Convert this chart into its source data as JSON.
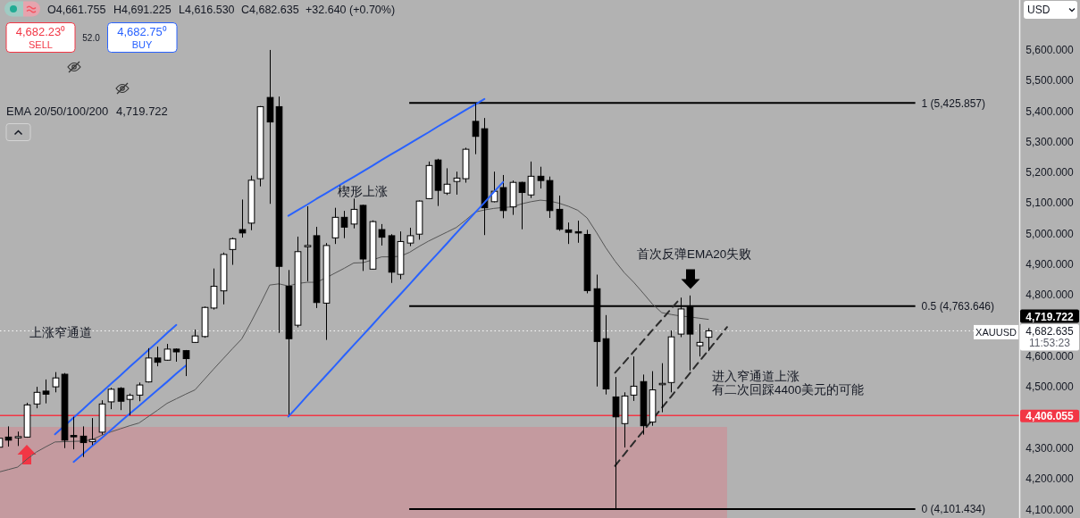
{
  "chart_data": {
    "type": "candlestick",
    "categories": [
      null,
      null,
      null,
      null,
      null,
      null,
      null,
      null,
      null,
      null,
      null,
      null,
      null,
      null,
      null,
      null,
      null,
      null,
      null,
      null,
      null,
      null,
      null,
      null,
      null,
      null,
      null,
      null,
      null,
      null,
      null,
      null,
      null,
      null,
      null,
      null,
      null,
      null,
      null,
      null,
      null,
      null,
      null,
      null,
      null,
      null,
      null,
      null,
      null,
      null,
      null,
      null,
      null,
      null,
      null,
      null,
      null,
      null,
      null,
      null,
      null,
      null,
      null,
      null,
      null,
      null,
      null,
      null,
      null,
      null,
      null,
      null,
      null,
      null,
      null,
      null,
      null,
      null,
      null,
      null,
      null,
      null,
      null,
      null,
      null,
      null,
      null,
      null,
      null,
      null,
      null,
      null,
      null,
      null,
      null,
      null,
      null,
      null,
      null,
      null,
      null,
      null,
      null,
      null,
      null,
      null,
      null,
      null,
      null,
      null
    ],
    "ohlc": [
      [
        4303,
        4335,
        4300,
        4332
      ],
      [
        4336,
        4371,
        4305,
        4326
      ],
      [
        4334,
        4354,
        4307,
        4337
      ],
      [
        4336,
        4448,
        4334,
        4441
      ],
      [
        4444,
        4500,
        4430,
        4482
      ],
      [
        4486,
        4524,
        4446,
        4476
      ],
      [
        4500,
        4548,
        4482,
        4529
      ],
      [
        4541,
        4545,
        4300,
        4326
      ],
      [
        4340,
        4402,
        4296,
        4338
      ],
      [
        4339,
        4371,
        4271,
        4318
      ],
      [
        4321,
        4398,
        4310,
        4328
      ],
      [
        4352,
        4456,
        4344,
        4444
      ],
      [
        4451,
        4497,
        4427,
        4492
      ],
      [
        4495,
        4499,
        4424,
        4453
      ],
      [
        4459,
        4478,
        4407,
        4472
      ],
      [
        4473,
        4514,
        4453,
        4506
      ],
      [
        4516,
        4626,
        4514,
        4594
      ],
      [
        4594,
        4631,
        4567,
        4580
      ],
      [
        4587,
        4640,
        4585,
        4623
      ],
      [
        4623,
        4625,
        4582,
        4614
      ],
      [
        4618,
        4620,
        4535,
        4592
      ],
      [
        4645,
        4687,
        4643,
        4666
      ],
      [
        4664,
        4762,
        4660,
        4759
      ],
      [
        4757,
        4886,
        4752,
        4828
      ],
      [
        4813,
        4938,
        4769,
        4932
      ],
      [
        4948,
        4987,
        4898,
        4983
      ],
      [
        5013,
        5111,
        4987,
        5002
      ],
      [
        5034,
        5189,
        5011,
        5174
      ],
      [
        5179,
        5416,
        5154,
        5414
      ],
      [
        5444,
        5599,
        5097,
        5364
      ],
      [
        5414,
        5447,
        4676,
        4893
      ],
      [
        4828,
        4881,
        4402,
        4657
      ],
      [
        4701,
        4990,
        4694,
        4941
      ],
      [
        4958,
        5089,
        4844,
        4960
      ],
      [
        4993,
        5022,
        4757,
        4775
      ],
      [
        4773,
        4969,
        4653,
        4961
      ],
      [
        4986,
        5084,
        4966,
        5053
      ],
      [
        5053,
        5074,
        4985,
        5021
      ],
      [
        5031,
        5114,
        5017,
        5079
      ],
      [
        5092,
        5094,
        4878,
        4917
      ],
      [
        4884,
        5043,
        4882,
        5039
      ],
      [
        5013,
        5031,
        4961,
        4988
      ],
      [
        4993,
        4998,
        4839,
        4874
      ],
      [
        4867,
        5007,
        4851,
        4974
      ],
      [
        4969,
        5019,
        4959,
        4993
      ],
      [
        4998,
        5108,
        4980,
        5106
      ],
      [
        5114,
        5235,
        5112,
        5222
      ],
      [
        5240,
        5244,
        5090,
        5141
      ],
      [
        5132,
        5213,
        5126,
        5161
      ],
      [
        5170,
        5202,
        5127,
        5181
      ],
      [
        5179,
        5280,
        5166,
        5275
      ],
      [
        5366,
        5426,
        5259,
        5317
      ],
      [
        5342,
        5377,
        4995,
        5084
      ],
      [
        5104,
        5202,
        5102,
        5138
      ],
      [
        5150,
        5191,
        5050,
        5075
      ],
      [
        5087,
        5173,
        5061,
        5167
      ],
      [
        5167,
        5169,
        5014,
        5134
      ],
      [
        5126,
        5235,
        5116,
        5187
      ],
      [
        5187,
        5218,
        5147,
        5173
      ],
      [
        5173,
        5186,
        5051,
        5075
      ],
      [
        5079,
        5124,
        5009,
        5014
      ],
      [
        5012,
        5036,
        4966,
        5004
      ],
      [
        5005,
        5042,
        4970,
        5003
      ],
      [
        4997,
        5012,
        4805,
        4814
      ],
      [
        4820,
        4866,
        4501,
        4648
      ],
      [
        4657,
        4734,
        4475,
        4493
      ],
      [
        4467,
        4532,
        4101,
        4402
      ],
      [
        4380,
        4482,
        4302,
        4470
      ],
      [
        4473,
        4599,
        4454,
        4502
      ],
      [
        4517,
        4540,
        4344,
        4373
      ],
      [
        4385,
        4551,
        4373,
        4490
      ],
      [
        4508,
        4577,
        4417,
        4510
      ],
      [
        4514,
        4684,
        4482,
        4663
      ],
      [
        4672,
        4791,
        4662,
        4754
      ],
      [
        4760,
        4798,
        4553,
        4672
      ],
      [
        4634,
        4705,
        4599,
        4645
      ],
      [
        4661.755,
        4691.225,
        4616.53,
        4682.635
      ],
      null,
      null,
      null,
      null,
      null,
      null,
      null,
      null,
      null,
      null,
      null,
      null,
      null,
      null,
      null,
      null,
      null,
      null,
      null,
      null,
      null,
      null,
      null,
      null,
      null,
      null,
      null,
      null,
      null,
      null,
      null,
      null,
      null
    ],
    "series": [
      {
        "type": "line",
        "color": "#555555",
        "values": [
          4222,
          4230,
          4238,
          4264,
          4287,
          4304,
          4320,
          4321,
          4322,
          4323,
          4328,
          4342,
          4353,
          4363,
          4373,
          4382,
          4403,
          4424,
          4446,
          4461,
          4476,
          4490,
          4524,
          4558,
          4591,
          4624,
          4656,
          4711,
          4770,
          4832,
          4836,
          4829,
          4837,
          4841,
          4841,
          4855,
          4871,
          4887,
          4904,
          4905,
          4914,
          4924,
          4924,
          4926,
          4939,
          4958,
          4975,
          4990,
          5005,
          5020,
          5044,
          5070,
          5077,
          5082,
          5085,
          5087,
          5097,
          5104,
          5109,
          5106,
          5099,
          5089,
          5076,
          5051,
          5004,
          4954,
          4910,
          4872,
          4841,
          4806,
          4770,
          4742,
          4736,
          4731,
          4728,
          4724,
          4720,
          null,
          null,
          null,
          null,
          null,
          null,
          null,
          null,
          null,
          null,
          null,
          null,
          null,
          null,
          null,
          null,
          null,
          null,
          null,
          null,
          null,
          null,
          null,
          null,
          null,
          null,
          null,
          null,
          null,
          null,
          null,
          null,
          null
        ]
      },
      {
        "type": "line",
        "color": "#2962ff",
        "values": [
          null,
          null,
          null,
          null,
          null,
          null,
          4345,
          4372,
          4400,
          4427,
          4455,
          4482,
          4510,
          4537,
          4565,
          4592,
          4620,
          4647,
          4675,
          4702,
          null,
          null,
          null,
          null,
          null,
          null,
          null,
          null,
          null,
          null,
          null,
          null,
          null,
          null,
          null,
          null,
          null,
          null,
          null,
          null,
          null,
          null,
          null,
          null,
          null,
          null,
          null,
          null,
          null,
          null,
          null,
          null,
          null,
          null,
          null,
          null,
          null,
          null,
          null,
          null,
          null,
          null,
          null,
          null,
          null,
          null,
          null,
          null,
          null,
          null,
          null,
          null,
          null,
          null,
          null,
          null,
          null,
          null,
          null,
          null,
          null,
          null,
          null,
          null,
          null,
          null,
          null,
          null,
          null,
          null,
          null,
          null,
          null,
          null,
          null,
          null,
          null,
          null,
          null,
          null,
          null,
          null,
          null,
          null,
          null,
          null,
          null,
          null,
          null,
          null
        ]
      },
      {
        "type": "line",
        "color": "#2962ff",
        "values": [
          null,
          null,
          null,
          null,
          null,
          null,
          null,
          null,
          4255,
          4281,
          4307,
          4333,
          4359,
          4386,
          4412,
          4438,
          4464,
          4490,
          4516,
          4543,
          4569,
          null,
          null,
          null,
          null,
          null,
          null,
          null,
          null,
          null,
          null,
          null,
          null,
          null,
          null,
          null,
          null,
          null,
          null,
          null,
          null,
          null,
          null,
          null,
          null,
          null,
          null,
          null,
          null,
          null,
          null,
          null,
          null,
          null,
          null,
          null,
          null,
          null,
          null,
          null,
          null,
          null,
          null,
          null,
          null,
          null,
          null,
          null,
          null,
          null,
          null,
          null,
          null,
          null,
          null,
          null,
          null,
          null,
          null,
          null,
          null,
          null,
          null,
          null,
          null,
          null,
          null,
          null,
          null,
          null,
          null,
          null,
          null,
          null,
          null,
          null,
          null,
          null,
          null,
          null,
          null,
          null,
          null,
          null,
          null,
          null,
          null,
          null,
          null,
          null
        ]
      },
      {
        "type": "line",
        "color": "#2962ff",
        "values": [
          null,
          null,
          null,
          null,
          null,
          null,
          null,
          null,
          null,
          null,
          null,
          null,
          null,
          null,
          null,
          null,
          null,
          null,
          null,
          null,
          null,
          null,
          null,
          null,
          null,
          null,
          null,
          null,
          null,
          null,
          null,
          5058,
          5076,
          5094,
          5113,
          5131,
          5149,
          5167,
          5185,
          5203,
          5221,
          5240,
          5258,
          5276,
          5294,
          5312,
          5330,
          5349,
          5367,
          5385,
          5403,
          5421,
          5439,
          null,
          null,
          null,
          null,
          null,
          null,
          null,
          null,
          null,
          null,
          null,
          null,
          null,
          null,
          null,
          null,
          null,
          null,
          null,
          null,
          null,
          null,
          null,
          null,
          null,
          null,
          null,
          null,
          null,
          null,
          null,
          null,
          null,
          null,
          null,
          null,
          null,
          null,
          null,
          null,
          null,
          null,
          null,
          null,
          null,
          null,
          null,
          null,
          null,
          null,
          null,
          null,
          null,
          null,
          null,
          null,
          null
        ]
      },
      {
        "type": "line",
        "color": "#2962ff",
        "values": [
          null,
          null,
          null,
          null,
          null,
          null,
          null,
          null,
          null,
          null,
          null,
          null,
          null,
          null,
          null,
          null,
          null,
          null,
          null,
          null,
          null,
          null,
          null,
          null,
          null,
          null,
          null,
          null,
          null,
          null,
          null,
          4403,
          4436,
          4470,
          4503,
          4536,
          4569,
          4603,
          4636,
          4669,
          4702,
          4736,
          4769,
          4802,
          4835,
          4869,
          4902,
          4935,
          4968,
          5002,
          5035,
          5068,
          5101,
          5135,
          5168,
          null,
          null,
          null,
          null,
          null,
          null,
          null,
          null,
          null,
          null,
          null,
          null,
          null,
          null,
          null,
          null,
          null,
          null,
          null,
          null,
          null,
          null,
          null,
          null,
          null,
          null,
          null,
          null,
          null,
          null,
          null,
          null,
          null,
          null,
          null,
          null,
          null,
          null,
          null,
          null,
          null,
          null,
          null,
          null,
          null,
          null,
          null,
          null,
          null,
          null,
          null,
          null,
          null,
          null,
          null
        ]
      },
      {
        "type": "line",
        "color": "#2b2b2b",
        "line_style": "dashed",
        "values": [
          null,
          null,
          null,
          null,
          null,
          null,
          null,
          null,
          null,
          null,
          null,
          null,
          null,
          null,
          null,
          null,
          null,
          null,
          null,
          null,
          null,
          null,
          null,
          null,
          null,
          null,
          null,
          null,
          null,
          null,
          null,
          null,
          null,
          null,
          null,
          null,
          null,
          null,
          null,
          null,
          null,
          null,
          null,
          null,
          null,
          null,
          null,
          null,
          null,
          null,
          null,
          null,
          null,
          null,
          null,
          null,
          null,
          null,
          null,
          null,
          null,
          null,
          null,
          null,
          null,
          null,
          4546,
          4580,
          4615,
          4650,
          4685,
          4719,
          4754,
          4789,
          null,
          null,
          null,
          null,
          null,
          null,
          null,
          null,
          null,
          null,
          null,
          null,
          null,
          null,
          null,
          null,
          null,
          null,
          null,
          null,
          null,
          null,
          null,
          null,
          null,
          null,
          null,
          null,
          null,
          null,
          null,
          null,
          null,
          null,
          null,
          null
        ]
      },
      {
        "type": "line",
        "color": "#2b2b2b",
        "line_style": "dashed",
        "values": [
          null,
          null,
          null,
          null,
          null,
          null,
          null,
          null,
          null,
          null,
          null,
          null,
          null,
          null,
          null,
          null,
          null,
          null,
          null,
          null,
          null,
          null,
          null,
          null,
          null,
          null,
          null,
          null,
          null,
          null,
          null,
          null,
          null,
          null,
          null,
          null,
          null,
          null,
          null,
          null,
          null,
          null,
          null,
          null,
          null,
          null,
          null,
          null,
          null,
          null,
          null,
          null,
          null,
          null,
          null,
          null,
          null,
          null,
          null,
          null,
          null,
          null,
          null,
          null,
          null,
          null,
          4242,
          4280,
          4318,
          4355,
          4393,
          4431,
          4468,
          4506,
          4544,
          4582,
          4619,
          4657,
          4695,
          null,
          null,
          null,
          null,
          null,
          null,
          null,
          null,
          null,
          null,
          null,
          null,
          null,
          null,
          null,
          null,
          null,
          null,
          null,
          null,
          null,
          null,
          null,
          null,
          null,
          null,
          null,
          null,
          null,
          null,
          null
        ]
      }
    ],
    "ylim": [
      4072,
      5762
    ],
    "yticks": [
      {
        "value": 4100,
        "label": "4,100.000"
      },
      {
        "value": 4200,
        "label": "4,200.000"
      },
      {
        "value": 4300,
        "label": "4,300.000"
      },
      {
        "value": 4500,
        "label": "4,500.000"
      },
      {
        "value": 4600,
        "label": "4,600.000"
      },
      {
        "value": 4800,
        "label": "4,800.000"
      },
      {
        "value": 4900,
        "label": "4,900.000"
      },
      {
        "value": 5000,
        "label": "5,000.000"
      },
      {
        "value": 5100,
        "label": "5,100.000"
      },
      {
        "value": 5200,
        "label": "5,200.000"
      },
      {
        "value": 5300,
        "label": "5,300.000"
      },
      {
        "value": 5400,
        "label": "5,400.000"
      },
      {
        "value": 5500,
        "label": "5,500.000"
      },
      {
        "value": 5600,
        "label": "5,600.000"
      }
    ],
    "tick_labels": "y",
    "ref_lines": [
      {
        "axis": "y",
        "value": 5425.857,
        "label": "1 (5,425.857)",
        "color": "#000000",
        "line_style": "solid"
      },
      {
        "axis": "y",
        "value": 4763.646,
        "label": "0.5 (4,763.646)",
        "color": "#000000",
        "line_style": "solid"
      },
      {
        "axis": "y",
        "value": 4101.434,
        "label": "0 (4,101.434)",
        "color": "#000000",
        "line_style": "solid"
      },
      {
        "axis": "y",
        "value": 4406.055,
        "label": "4,406.055",
        "color": "#f23645",
        "line_style": "solid"
      },
      {
        "axis": "y",
        "value": 4682.635,
        "label": "XAUUSD",
        "color": "#ffffff",
        "line_style": "dotted"
      }
    ],
    "bands": [
      {
        "axis": "y",
        "from": 4072,
        "to": 4369,
        "color": "#c49a9f"
      }
    ],
    "annotations": [
      "O4,661.755",
      "H4,691.225",
      "L4,616.530",
      "C4,682.635",
      "+32.640 (+0.70%)",
      "4,682.23⁰",
      "SELL",
      "52.0",
      "4,682.75⁰",
      "BUY",
      "EMA 20/50/100/200",
      "4,719.722",
      "USD",
      "上涨窄通道",
      "楔形上涨",
      "首次反弹EMA20失败",
      "进入窄通道上涨",
      "有二次回踩4400美元的可能",
      "4,719.722",
      "4,682.635",
      "11:53:23"
    ]
  }
}
